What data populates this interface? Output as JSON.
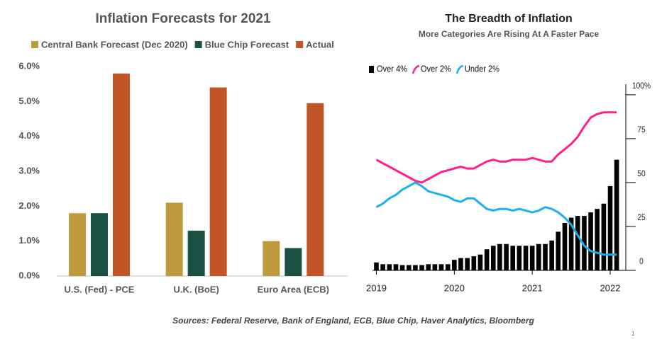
{
  "chart_data": [
    {
      "type": "bar",
      "title": "Inflation Forecasts for 2021",
      "categories": [
        "U.S. (Fed) - PCE",
        "U.K. (BoE)",
        "Euro Area (ECB)"
      ],
      "series": [
        {
          "name": "Central Bank Forecast (Dec 2020)",
          "color": "#bf9b3e",
          "values": [
            1.8,
            2.1,
            1.0
          ]
        },
        {
          "name": "Blue Chip Forecast",
          "color": "#1b5142",
          "values": [
            1.8,
            1.3,
            0.8
          ]
        },
        {
          "name": "Actual",
          "color": "#c25527",
          "values": [
            5.8,
            5.4,
            4.95
          ]
        }
      ],
      "ylim": [
        0,
        6
      ],
      "yticks": [
        {
          "value": 0,
          "label": "0.0%"
        },
        {
          "value": 1,
          "label": "1.0%"
        },
        {
          "value": 2,
          "label": "2.0%"
        },
        {
          "value": 3,
          "label": "3.0%"
        },
        {
          "value": 4,
          "label": "4.0%"
        },
        {
          "value": 5,
          "label": "5.0%"
        },
        {
          "value": 6,
          "label": "6.0%"
        }
      ]
    },
    {
      "type": "combo",
      "title": "The Breadth of Inflation",
      "subtitle": "More Categories Are Rising At A Faster Pace",
      "x": [
        2019,
        2019.083,
        2019.167,
        2019.25,
        2019.333,
        2019.417,
        2019.5,
        2019.583,
        2019.667,
        2019.75,
        2019.833,
        2019.917,
        2020,
        2020.083,
        2020.167,
        2020.25,
        2020.333,
        2020.417,
        2020.5,
        2020.583,
        2020.667,
        2020.75,
        2020.833,
        2020.917,
        2021,
        2021.083,
        2021.167,
        2021.25,
        2021.333,
        2021.417,
        2021.5,
        2021.583,
        2021.667,
        2021.75,
        2021.833,
        2021.917,
        2022,
        2022.083
      ],
      "series": [
        {
          "name": "Over 4%",
          "type": "bar",
          "color": "#000000",
          "values": [
            4.5,
            3.5,
            3.5,
            3.5,
            3,
            3,
            3,
            3,
            3.5,
            3.5,
            3.5,
            3.5,
            6,
            7,
            7,
            8,
            9,
            12,
            14,
            15,
            15,
            14,
            14,
            14,
            14,
            15,
            15,
            17,
            22,
            27,
            30,
            31,
            31,
            33,
            35,
            38,
            48,
            63
          ]
        },
        {
          "name": "Over 2%",
          "type": "line",
          "color": "#ff1f8e",
          "values": [
            63,
            61,
            59,
            57,
            55,
            53,
            51,
            50,
            52,
            54,
            56,
            57,
            58,
            59,
            58,
            58,
            60,
            62,
            63,
            62,
            62,
            63,
            63,
            63,
            64,
            63,
            62,
            62,
            66,
            69,
            72,
            76,
            82,
            87,
            89,
            90,
            90,
            90
          ]
        },
        {
          "name": "Under 2%",
          "type": "line",
          "color": "#1cb0ee",
          "values": [
            36,
            38,
            41,
            43,
            46,
            48,
            50,
            48,
            45,
            44,
            43,
            42,
            40,
            39,
            41,
            41,
            38,
            35,
            34,
            35,
            35,
            34,
            35,
            34,
            33,
            34,
            36,
            35,
            33,
            30,
            26,
            20,
            14,
            11,
            10,
            9,
            9,
            9
          ]
        }
      ],
      "xlim": [
        2018.95,
        2022.2
      ],
      "xticks": [
        2019,
        2020,
        2021,
        2022
      ],
      "ylim": [
        0,
        106
      ],
      "yticks": [
        0,
        25,
        50,
        75,
        {
          "value": 100,
          "label": "100%"
        }
      ]
    }
  ],
  "footer": {
    "source": "Sources: Federal Reserve, Bank of England,  ECB, Blue Chip, Haver Analytics, Bloomberg",
    "page": "1"
  }
}
